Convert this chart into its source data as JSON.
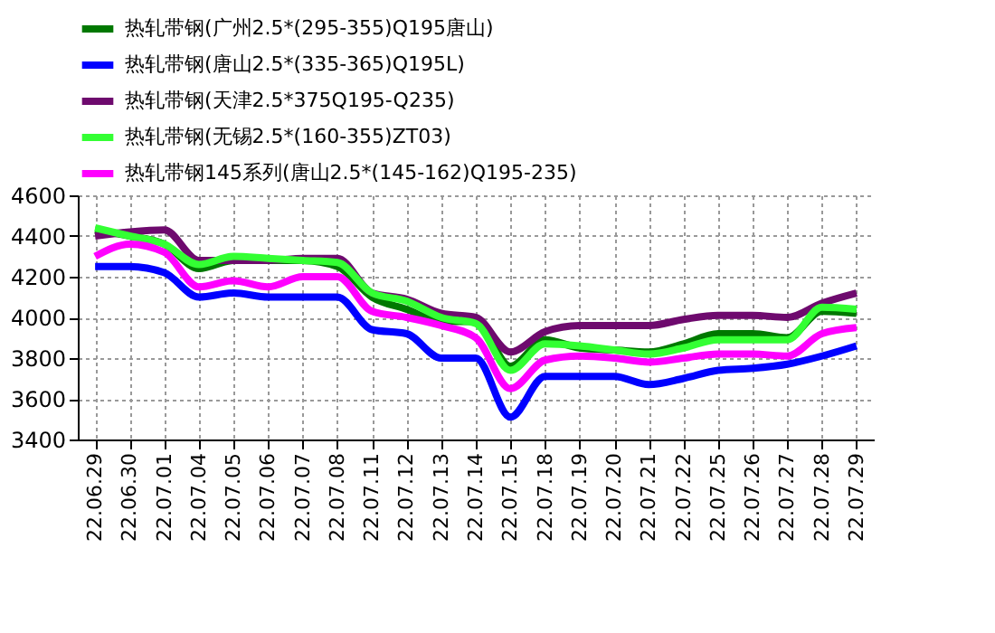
{
  "chart_data": {
    "type": "line",
    "categories": [
      "22.06.29",
      "22.06.30",
      "22.07.01",
      "22.07.04",
      "22.07.05",
      "22.07.06",
      "22.07.07",
      "22.07.08",
      "22.07.11",
      "22.07.12",
      "22.07.13",
      "22.07.14",
      "22.07.15",
      "22.07.18",
      "22.07.19",
      "22.07.20",
      "22.07.21",
      "22.07.22",
      "22.07.25",
      "22.07.26",
      "22.07.27",
      "22.07.28",
      "22.07.29"
    ],
    "series": [
      {
        "name": "热轧带钢(广州2.5*(295-355)Q195唐山)",
        "color": "#007800",
        "values": [
          4430,
          4400,
          4360,
          4240,
          4280,
          4280,
          4280,
          4250,
          4100,
          4040,
          3980,
          3980,
          3760,
          3890,
          3850,
          3840,
          3830,
          3870,
          3920,
          3920,
          3900,
          4030,
          4020
        ]
      },
      {
        "name": "热轧带钢(唐山2.5*(335-365)Q195L)",
        "color": "#0000ff",
        "values": [
          4250,
          4250,
          4220,
          4100,
          4120,
          4100,
          4100,
          4100,
          3940,
          3920,
          3800,
          3800,
          3510,
          3710,
          3710,
          3710,
          3670,
          3700,
          3740,
          3750,
          3770,
          3810,
          3860
        ]
      },
      {
        "name": "热轧带钢(天津2.5*375Q195-Q235)",
        "color": "#6e0a6e",
        "values": [
          4400,
          4420,
          4430,
          4280,
          4280,
          4280,
          4290,
          4290,
          4120,
          4090,
          4020,
          4000,
          3830,
          3930,
          3960,
          3960,
          3960,
          3990,
          4010,
          4010,
          4000,
          4070,
          4120
        ]
      },
      {
        "name": "热轧带钢(无锡2.5*(160-355)ZT03)",
        "color": "#33ff33",
        "values": [
          4440,
          4400,
          4360,
          4260,
          4300,
          4290,
          4280,
          4270,
          4120,
          4080,
          4000,
          3970,
          3740,
          3870,
          3860,
          3840,
          3820,
          3850,
          3890,
          3890,
          3890,
          4050,
          4040
        ]
      },
      {
        "name": "热轧带钢145系列(唐山2.5*(145-162)Q195-235)",
        "color": "#ff00ff",
        "values": [
          4300,
          4360,
          4320,
          4150,
          4180,
          4150,
          4200,
          4200,
          4030,
          4000,
          3960,
          3900,
          3650,
          3790,
          3810,
          3800,
          3780,
          3800,
          3820,
          3820,
          3810,
          3920,
          3950
        ]
      }
    ],
    "ylim": [
      3400,
      4600
    ],
    "yticks": [
      3400,
      3600,
      3800,
      4000,
      4200,
      4400,
      4600
    ],
    "grid": true,
    "legend": "top left",
    "marker": "none",
    "line_style": "solid"
  }
}
